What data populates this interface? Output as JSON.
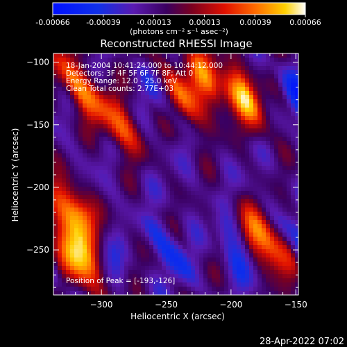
{
  "colorbar": {
    "ticks": [
      "-0.00066",
      "-0.00039",
      "-0.00013",
      "0.00013",
      "0.00039",
      "0.00066"
    ],
    "unit_label": "(photons cm⁻² s⁻¹ asec⁻²)",
    "range": [
      -0.00066,
      0.00066
    ]
  },
  "chart_data": {
    "type": "heatmap",
    "title": "Reconstructed RHESSI Image",
    "xlabel": "Heliocentric X (arcsec)",
    "ylabel": "Heliocentric Y (arcsec)",
    "xlim": [
      -337,
      -148
    ],
    "ylim": [
      -286,
      -93
    ],
    "xticks": [
      -300,
      -250,
      -200,
      -150
    ],
    "yticks": [
      -100,
      -150,
      -200,
      -250
    ],
    "xtick_labels": [
      "−300",
      "−250",
      "−200",
      "−150"
    ],
    "ytick_labels": [
      "−100",
      "−150",
      "−200",
      "−250"
    ],
    "colormap": "rainbow-to-white (blue → purple → red → orange → yellow → white)",
    "annotations": [
      "18-Jan-2004 10:41:24.000 to 10:44:12.000",
      "Detectors: 3F 4F 5F 6F 7F 8F; Att 0",
      "Energy Range: 12.0 - 25.0 keV",
      "Clean    Total counts: 2.77E+03"
    ],
    "peak_label": "Position of Peak = [-193,-126]",
    "peak": [
      -193,
      -126
    ],
    "bright_sources": [
      {
        "x": -193,
        "y": -126,
        "level": 1.0
      },
      {
        "x": -318,
        "y": -255,
        "level": 0.95
      },
      {
        "x": -318,
        "y": -222,
        "level": 0.85
      },
      {
        "x": -173,
        "y": -245,
        "level": 0.8
      },
      {
        "x": -318,
        "y": -117,
        "level": 0.75
      },
      {
        "x": -290,
        "y": -145,
        "level": 0.7
      },
      {
        "x": -240,
        "y": -128,
        "level": 0.65
      },
      {
        "x": -220,
        "y": -115,
        "level": 0.6
      }
    ]
  },
  "timestamp": "28-Apr-2022 07:02"
}
